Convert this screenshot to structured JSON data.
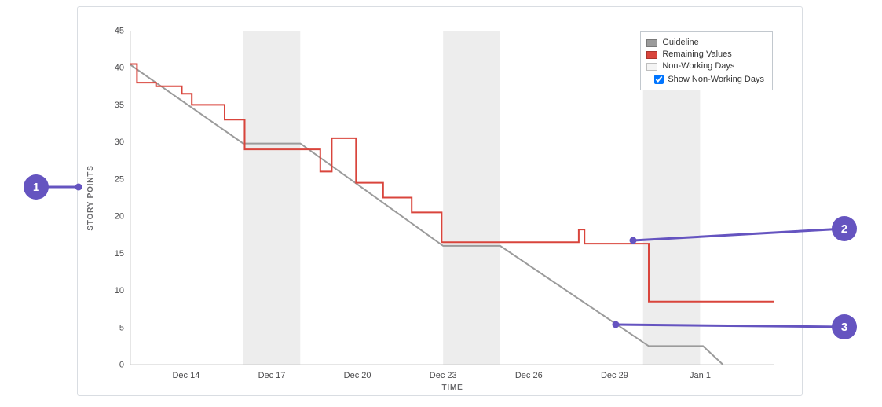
{
  "chart_data": {
    "type": "line",
    "title": "",
    "xlabel": "TIME",
    "ylabel": "STORY POINTS",
    "ylim": [
      0,
      45
    ],
    "y_ticks": [
      0,
      5,
      10,
      15,
      20,
      25,
      30,
      35,
      40,
      45
    ],
    "x_range_days": [
      12.05,
      34.6
    ],
    "x_ticks": [
      {
        "day": 14,
        "label": "Dec 14"
      },
      {
        "day": 17,
        "label": "Dec 17"
      },
      {
        "day": 20,
        "label": "Dec 20"
      },
      {
        "day": 23,
        "label": "Dec 23"
      },
      {
        "day": 26,
        "label": "Dec 26"
      },
      {
        "day": 29,
        "label": "Dec 29"
      },
      {
        "day": 32,
        "label": "Jan 1"
      }
    ],
    "non_working_day_bands": [
      [
        16,
        18
      ],
      [
        23,
        25
      ],
      [
        30,
        32
      ]
    ],
    "grid": false,
    "series": [
      {
        "name": "Guideline",
        "style": "line",
        "color": "#9b9b9b",
        "points": [
          [
            12.05,
            40.4
          ],
          [
            16,
            29.8
          ],
          [
            18,
            29.8
          ],
          [
            23,
            16.0
          ],
          [
            25,
            16.0
          ],
          [
            30.2,
            2.5
          ],
          [
            32.1,
            2.5
          ],
          [
            32.8,
            0
          ]
        ]
      },
      {
        "name": "Remaining Values",
        "style": "step",
        "color": "#d9453c",
        "extend_to_x": 34.6,
        "points": [
          [
            12.05,
            40.5
          ],
          [
            12.28,
            38.0
          ],
          [
            12.95,
            37.5
          ],
          [
            13.85,
            36.5
          ],
          [
            14.2,
            35.0
          ],
          [
            15.35,
            33.0
          ],
          [
            16.05,
            29.0
          ],
          [
            18.7,
            26.0
          ],
          [
            19.1,
            30.5
          ],
          [
            19.95,
            24.5
          ],
          [
            20.9,
            22.5
          ],
          [
            21.9,
            20.5
          ],
          [
            22.95,
            16.5
          ],
          [
            27.75,
            18.2
          ],
          [
            27.95,
            16.3
          ],
          [
            30.2,
            8.5
          ]
        ]
      }
    ],
    "legend": {
      "position": "top-right",
      "items": [
        {
          "label": "Guideline",
          "color": "#9b9b9b"
        },
        {
          "label": "Remaining Values",
          "color": "#d9453c"
        },
        {
          "label": "Non-Working Days",
          "color": "#f4f4f4"
        }
      ],
      "checkbox": {
        "label": "Show Non-Working Days",
        "checked": true
      }
    }
  },
  "callouts": [
    {
      "number": "1"
    },
    {
      "number": "2"
    },
    {
      "number": "3"
    }
  ],
  "colors": {
    "accent": "#6554c0",
    "band": "#ededed",
    "axis": "#cccccc"
  }
}
